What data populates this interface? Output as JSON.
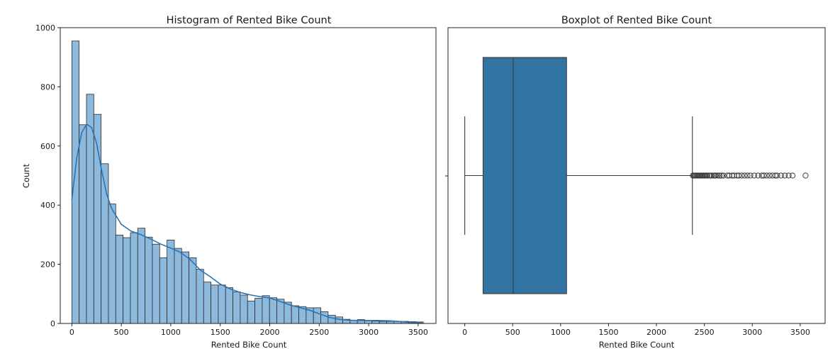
{
  "chart_data": [
    {
      "type": "histogram",
      "title": "Histogram of Rented Bike Count",
      "xlabel": "Rented Bike Count",
      "ylabel": "Count",
      "xlim": [
        -117,
        3680
      ],
      "ylim": [
        0,
        1000
      ],
      "xticks": [
        0,
        500,
        1000,
        1500,
        2000,
        2500,
        3000,
        3500
      ],
      "yticks": [
        0,
        200,
        400,
        600,
        800,
        1000
      ],
      "bin_start": 0,
      "bin_width": 74,
      "counts": [
        955,
        672,
        775,
        707,
        540,
        404,
        299,
        290,
        307,
        322,
        292,
        268,
        222,
        282,
        254,
        242,
        222,
        183,
        140,
        130,
        130,
        121,
        107,
        96,
        76,
        85,
        94,
        87,
        82,
        72,
        60,
        57,
        53,
        53,
        40,
        28,
        22,
        14,
        10,
        13,
        9,
        8,
        7,
        7,
        7,
        7,
        6,
        5
      ],
      "kde": [
        [
          0,
          418
        ],
        [
          50,
          560
        ],
        [
          100,
          645
        ],
        [
          150,
          674
        ],
        [
          200,
          662
        ],
        [
          250,
          610
        ],
        [
          300,
          520
        ],
        [
          350,
          440
        ],
        [
          400,
          390
        ],
        [
          500,
          335
        ],
        [
          600,
          312
        ],
        [
          700,
          300
        ],
        [
          800,
          285
        ],
        [
          900,
          268
        ],
        [
          1000,
          255
        ],
        [
          1100,
          240
        ],
        [
          1200,
          215
        ],
        [
          1300,
          180
        ],
        [
          1400,
          158
        ],
        [
          1500,
          133
        ],
        [
          1600,
          117
        ],
        [
          1700,
          105
        ],
        [
          1800,
          97
        ],
        [
          1900,
          91
        ],
        [
          2000,
          86
        ],
        [
          2100,
          75
        ],
        [
          2200,
          63
        ],
        [
          2300,
          54
        ],
        [
          2400,
          45
        ],
        [
          2500,
          33
        ],
        [
          2600,
          21
        ],
        [
          2700,
          14
        ],
        [
          2800,
          11
        ],
        [
          2900,
          10
        ],
        [
          3000,
          10
        ],
        [
          3100,
          10
        ],
        [
          3200,
          9
        ],
        [
          3300,
          7
        ],
        [
          3400,
          4
        ],
        [
          3500,
          2
        ],
        [
          3550,
          1
        ]
      ],
      "colors": {
        "bar": "#8db9dd",
        "edge": "#2b2b2b",
        "kde": "#2a74b4"
      }
    },
    {
      "type": "box",
      "title": "Boxplot of Rented Bike Count",
      "xlabel": "Rented Bike Count",
      "xlim": [
        -175,
        3760
      ],
      "xticks": [
        0,
        500,
        1000,
        1500,
        2000,
        2500,
        3000,
        3500
      ],
      "whisker_low": 0,
      "q1": 191,
      "median": 505,
      "q3": 1062,
      "whisker_high": 2375,
      "outliers": [
        2380,
        2390,
        2400,
        2410,
        2420,
        2430,
        2440,
        2450,
        2460,
        2470,
        2480,
        2490,
        2500,
        2510,
        2520,
        2530,
        2550,
        2560,
        2580,
        2600,
        2610,
        2620,
        2640,
        2660,
        2680,
        2700,
        2740,
        2760,
        2790,
        2810,
        2840,
        2860,
        2890,
        2920,
        2950,
        2980,
        3020,
        3060,
        3100,
        3120,
        3150,
        3180,
        3210,
        3240,
        3260,
        3300,
        3340,
        3380,
        3420,
        3556
      ],
      "colors": {
        "box": "#3274a1",
        "line": "#3a3a3a"
      }
    }
  ]
}
